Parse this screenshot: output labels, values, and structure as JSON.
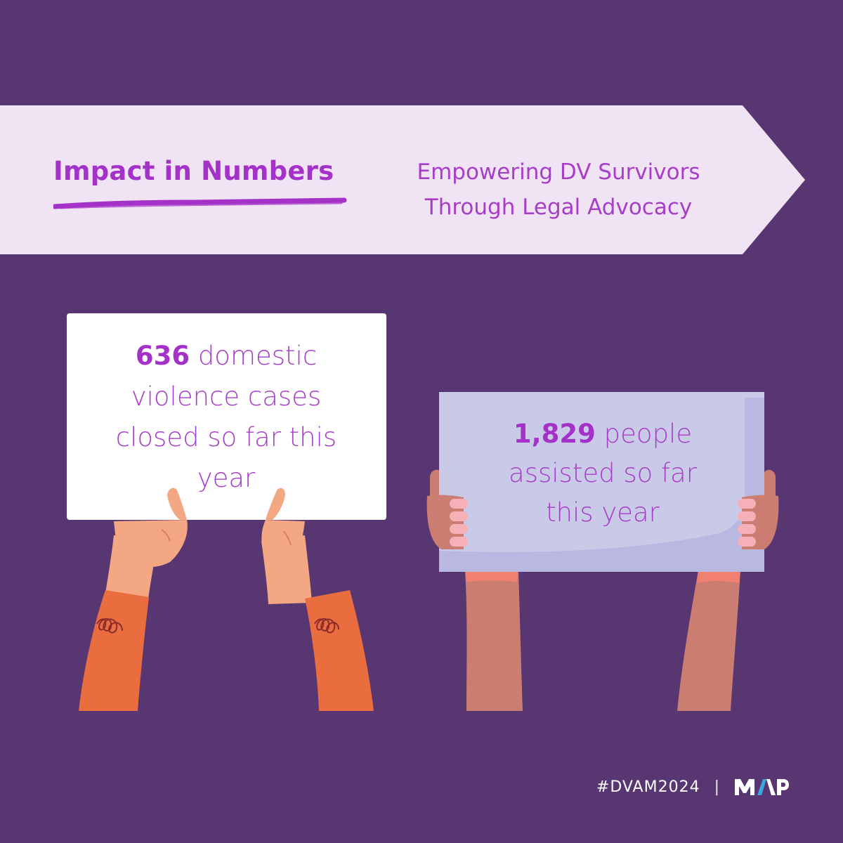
{
  "banner": {
    "title": "Impact in Numbers",
    "subtitle_line1": "Empowering DV Survivors",
    "subtitle_line2": "Through Legal Advocacy"
  },
  "signs": [
    {
      "number": "636",
      "text_line1": " domestic",
      "text_line2": "violence cases",
      "text_line3": "closed so far this",
      "text_line4": "year"
    },
    {
      "number": "1,829",
      "text_line1": " people",
      "text_line2": "assisted so far",
      "text_line3": "this year"
    }
  ],
  "footer": {
    "hashtag": "#DVAM2024",
    "separator": "|",
    "logo_text": "MAP"
  },
  "colors": {
    "background": "#573672",
    "banner": "#f0e3f4",
    "accent_purple": "#a432c8",
    "sign1": "#ffffff",
    "sign2": "#c9c9e8",
    "sleeve": "#ea6d3f",
    "skin_light": "#f4a783",
    "skin_dark": "#cb7d72",
    "logo_blue": "#3aa7e0"
  },
  "icons": {
    "left_hands": "hands-holding-sign-icon",
    "right_hands": "raised-hands-holding-sign-icon",
    "brush_underline": "brush-underline-icon",
    "logo": "map-logo-icon"
  }
}
